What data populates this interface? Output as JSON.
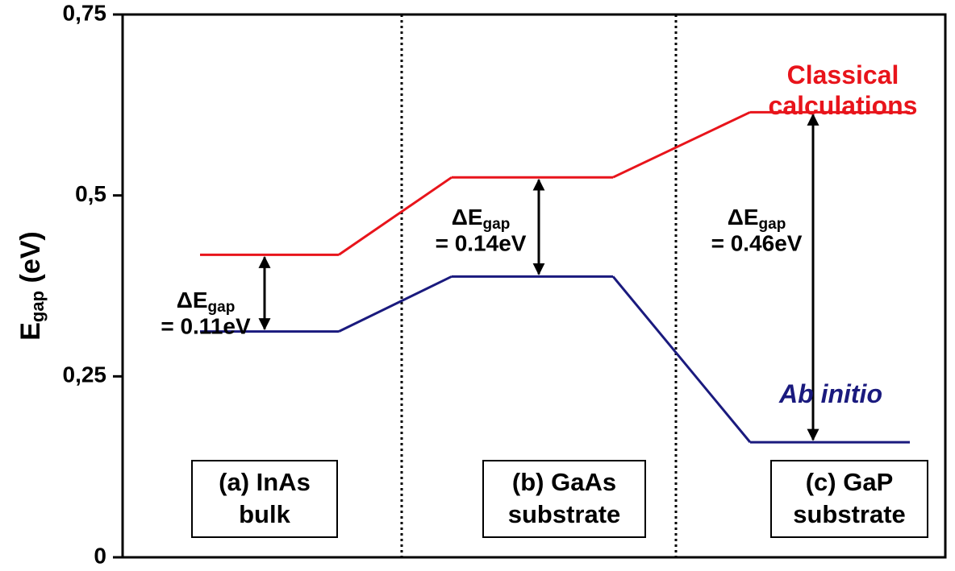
{
  "chart_data": {
    "type": "step",
    "ylabel": {
      "main": "E",
      "sub": "gap",
      "unit": "(eV)"
    },
    "categories": [
      "(a) InAs bulk",
      "(b) GaAs substrate",
      "(c) GaP substrate"
    ],
    "series": [
      {
        "name": "Classical calculations",
        "color": "#e8141b",
        "values": [
          0.418,
          0.525,
          0.615
        ]
      },
      {
        "name": "Ab initio",
        "color": "#1a1a7e",
        "values": [
          0.312,
          0.388,
          0.159
        ]
      }
    ],
    "annotations": [
      {
        "symbol": "ΔE",
        "sub": "gap",
        "text": "= 0.11eV"
      },
      {
        "symbol": "ΔE",
        "sub": "gap",
        "text": "= 0.14eV"
      },
      {
        "symbol": "ΔE",
        "sub": "gap",
        "text": "= 0.46eV"
      }
    ],
    "ylim": [
      0,
      0.75
    ],
    "yticks": [
      {
        "value": 0,
        "label": "0"
      },
      {
        "value": 0.25,
        "label": "0,25"
      },
      {
        "value": 0.5,
        "label": "0,5"
      },
      {
        "value": 0.75,
        "label": "0,75"
      }
    ]
  }
}
